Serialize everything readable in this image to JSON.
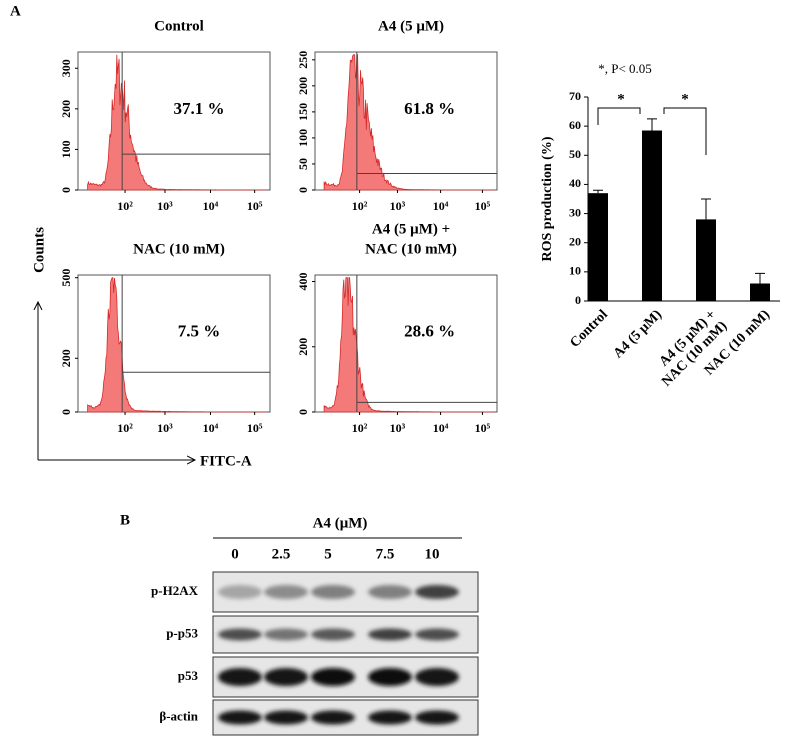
{
  "panel_labels": [
    "A",
    "B"
  ],
  "flow_cytometry": {
    "y_axis_label": "Counts",
    "x_axis_label": "FITC-A",
    "x_tick_labels": [
      "10²",
      "10³",
      "10⁴",
      "10⁵"
    ],
    "plots": [
      {
        "title_lines": [
          "Control"
        ],
        "percentage": "37.1 %",
        "ylim": [
          0,
          340
        ],
        "yticks": [
          0,
          100,
          200,
          300
        ]
      },
      {
        "title_lines": [
          "A4 (5 μM)"
        ],
        "percentage": "61.8 %",
        "ylim": [
          0,
          265
        ],
        "yticks": [
          0,
          50,
          100,
          150,
          200,
          250
        ]
      },
      {
        "title_lines": [
          "NAC (10 mM)"
        ],
        "percentage": "7.5 %",
        "ylim": [
          0,
          510
        ],
        "yticks": [
          0,
          200,
          500
        ]
      },
      {
        "title_lines": [
          "A4 (5 μM) +",
          "NAC (10 mM)"
        ],
        "percentage": "28.6 %",
        "ylim": [
          0,
          420
        ],
        "yticks": [
          0,
          200,
          400
        ]
      }
    ]
  },
  "chart_data": {
    "type": "bar",
    "annotation": "*, P< 0.05",
    "significance_marks": [
      "*",
      "*"
    ],
    "ylabel": "ROS production (%)",
    "categories": [
      "Control",
      "A4 (5 μM)",
      "A4 (5 μM) +\nNAC (10 mM)",
      "NAC (10 mM)"
    ],
    "values": [
      37,
      58.5,
      28,
      6
    ],
    "errors": [
      1,
      4,
      7,
      3.5
    ],
    "color": "#000000",
    "ylim": [
      0,
      70
    ],
    "yticks": [
      0,
      10,
      20,
      30,
      40,
      50,
      60,
      70
    ]
  },
  "western_blot": {
    "title": "A4 (μM)",
    "concentrations": [
      0,
      2.5,
      5,
      7.5,
      10
    ],
    "rows": [
      "p-H2AX",
      "p-p53",
      "p53",
      "β-actin"
    ]
  }
}
